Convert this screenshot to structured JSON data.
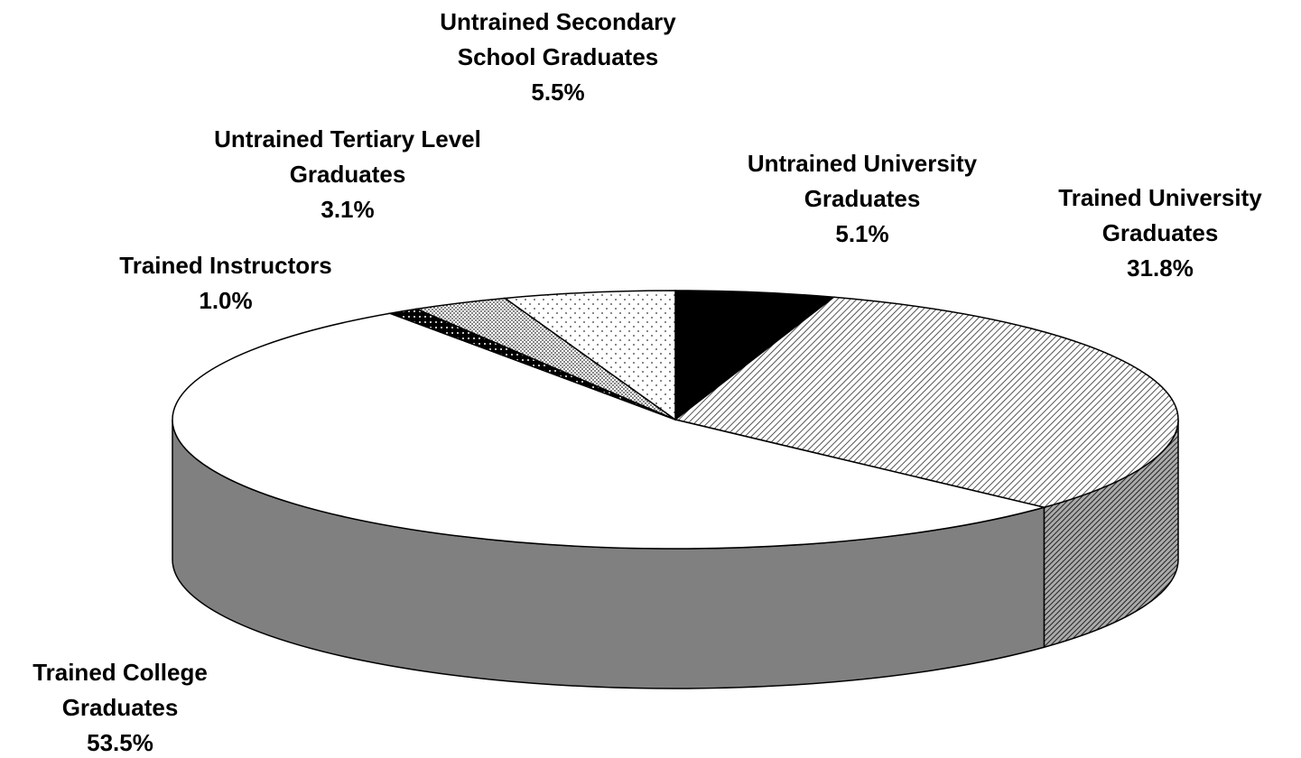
{
  "chart_data": {
    "type": "pie3d",
    "categories": [
      "Untrained University Graduates",
      "Trained University Graduates",
      "Trained College Graduates",
      "Trained Instructors",
      "Untrained Tertiary Level Graduates",
      "Untrained Secondary School Graduates"
    ],
    "values": [
      5.1,
      31.8,
      53.5,
      1.0,
      3.1,
      5.5
    ],
    "value_labels": [
      "5.1%",
      "31.8%",
      "53.5%",
      "1.0%",
      "3.1%",
      "5.5%"
    ]
  }
}
